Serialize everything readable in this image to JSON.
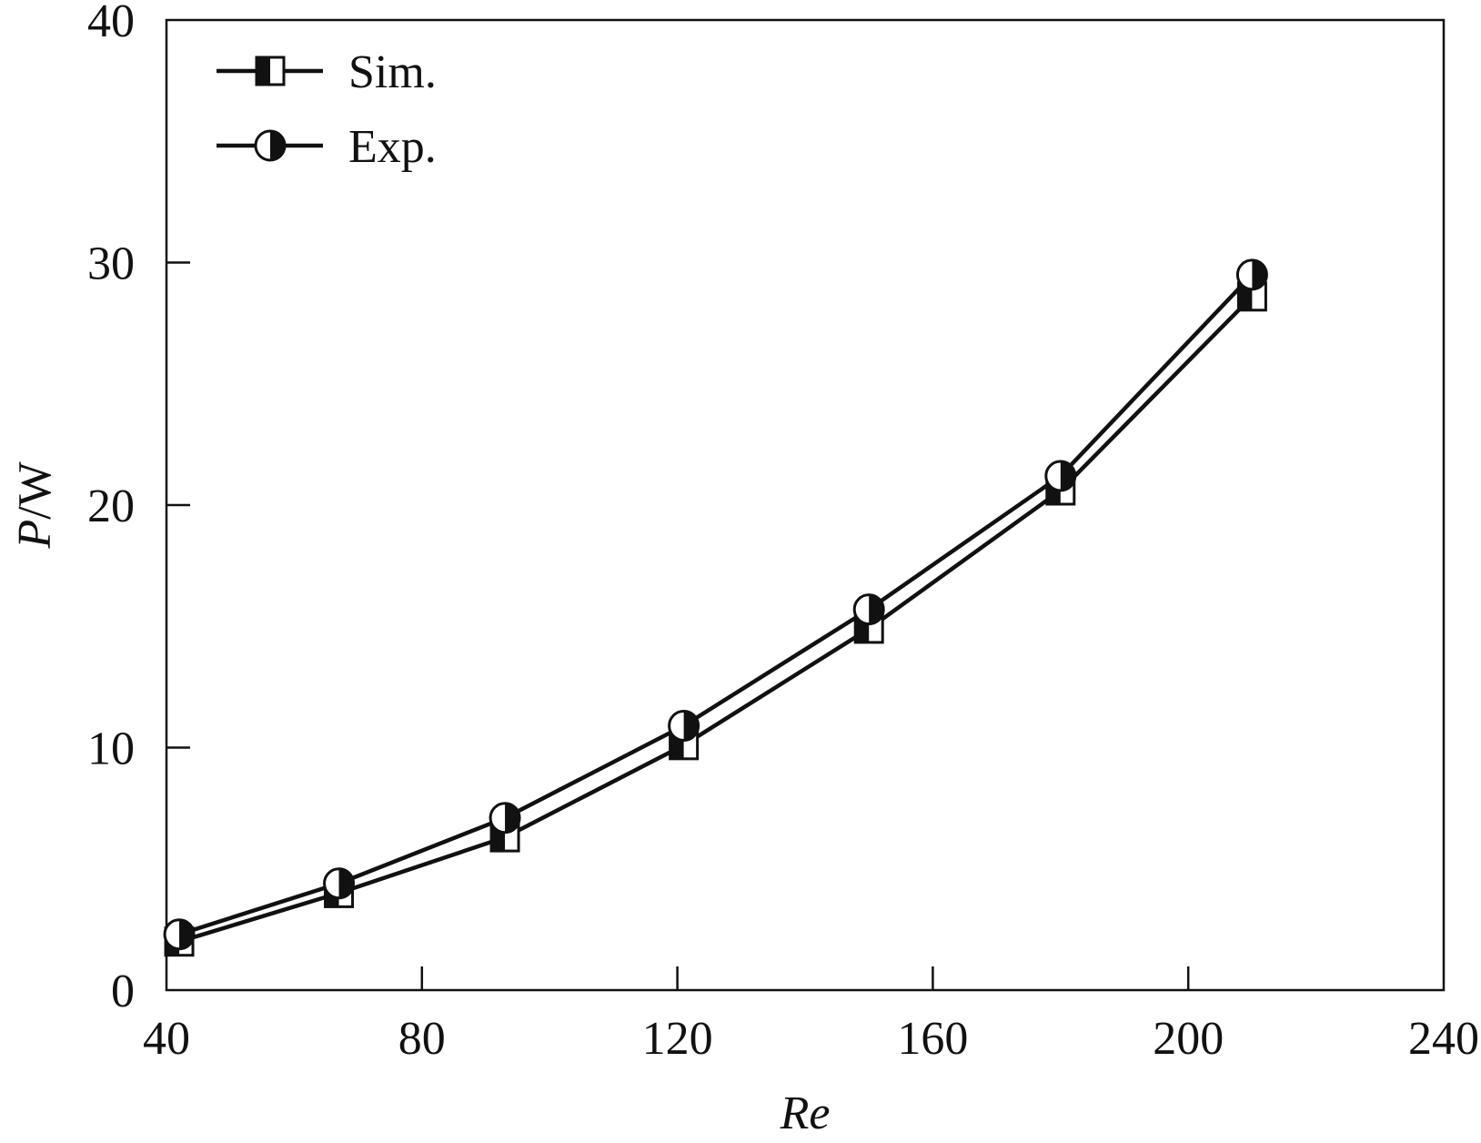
{
  "chart_data": {
    "type": "line",
    "title": "",
    "xlabel": "Re",
    "ylabel_italic": "P",
    "ylabel_unit": "/W",
    "xlim": [
      40,
      240
    ],
    "ylim": [
      0,
      40
    ],
    "xticks": [
      40,
      80,
      120,
      160,
      200,
      240
    ],
    "yticks": [
      0,
      10,
      20,
      30,
      40
    ],
    "grid": false,
    "legend_position": "top-left",
    "series": [
      {
        "name": "Sim.",
        "marker": "half-filled-square",
        "color": "#111111",
        "x": [
          42,
          67,
          93,
          121,
          150,
          180,
          210
        ],
        "y": [
          2.0,
          4.0,
          6.3,
          10.1,
          14.9,
          20.6,
          28.6
        ]
      },
      {
        "name": "Exp.",
        "marker": "half-filled-circle",
        "color": "#111111",
        "x": [
          42,
          67,
          93,
          121,
          150,
          180,
          210
        ],
        "y": [
          2.3,
          4.4,
          7.1,
          10.9,
          15.7,
          21.2,
          29.5
        ]
      }
    ]
  }
}
